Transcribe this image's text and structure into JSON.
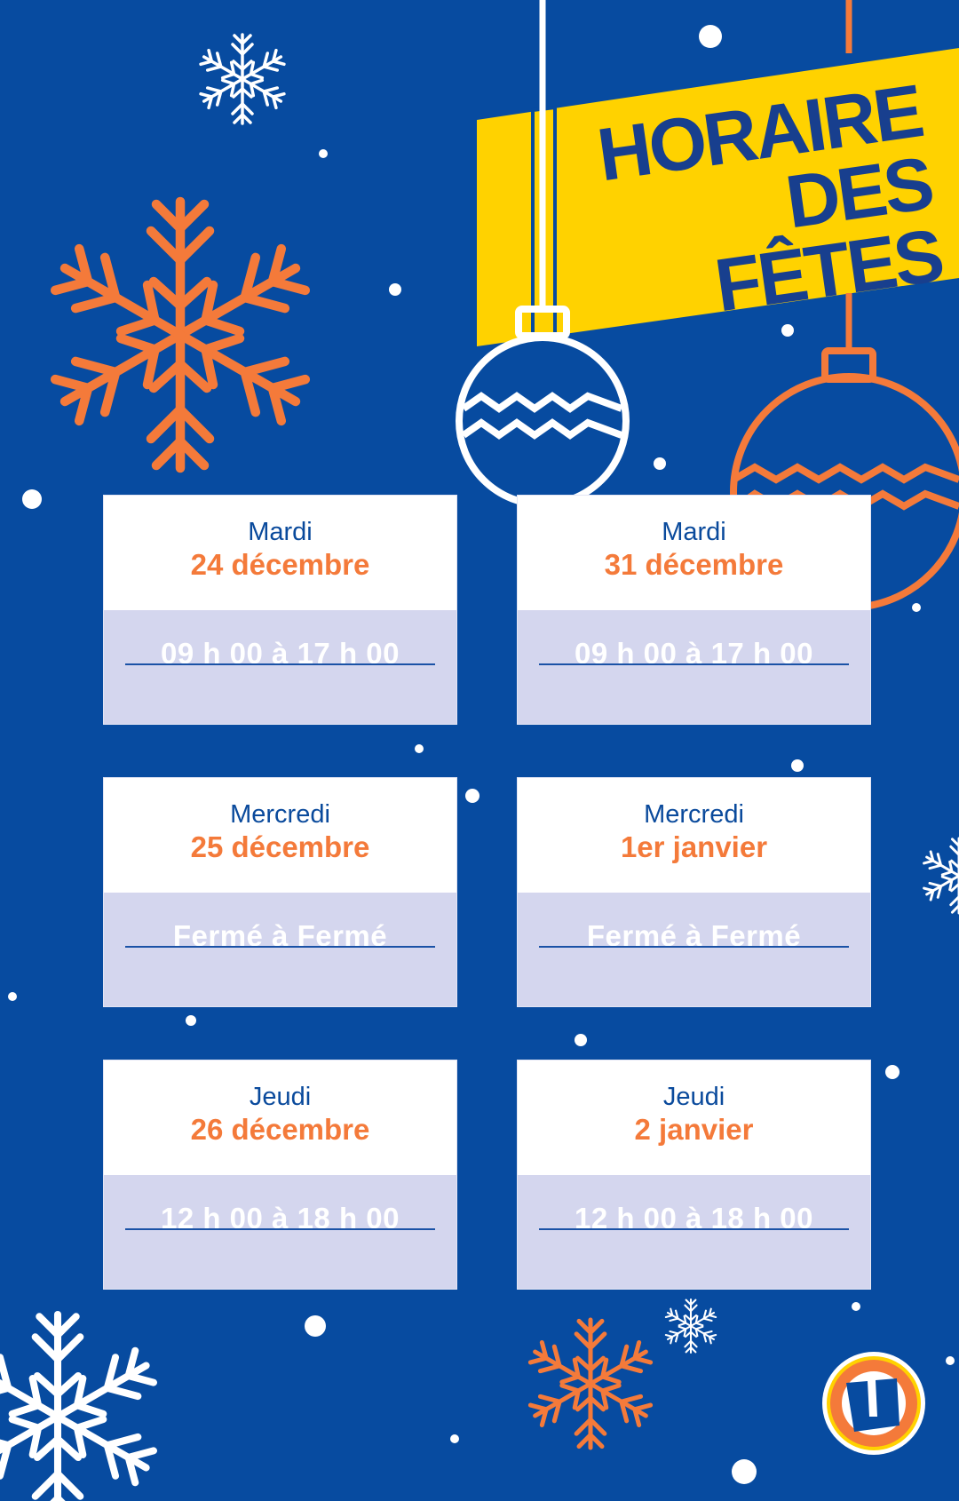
{
  "header": {
    "title_line1": "HORAIRE",
    "title_line2": "DES FÊTES"
  },
  "colors": {
    "background": "#074ba0",
    "accent_orange": "#f47a3a",
    "banner_yellow": "#ffd200",
    "title_blue": "#183f8e",
    "hours_panel": "#d4d6ee"
  },
  "schedule": [
    {
      "day": "Mardi",
      "date": "24 décembre",
      "hours": "09 h 00 à 17 h 00"
    },
    {
      "day": "Mardi",
      "date": "31 décembre",
      "hours": "09 h 00 à 17 h 00"
    },
    {
      "day": "Mercredi",
      "date": "25 décembre",
      "hours": "Fermé à Fermé"
    },
    {
      "day": "Mercredi",
      "date": "1er janvier",
      "hours": "Fermé à Fermé"
    },
    {
      "day": "Jeudi",
      "date": "26 décembre",
      "hours": "12 h 00 à 18 h 00"
    },
    {
      "day": "Jeudi",
      "date": "2 janvier",
      "hours": "12 h 00 à 18 h 00"
    }
  ],
  "logo": {
    "letter": "U"
  },
  "icons": [
    "snowflake-icon",
    "ornament-icon",
    "logo-icon"
  ]
}
